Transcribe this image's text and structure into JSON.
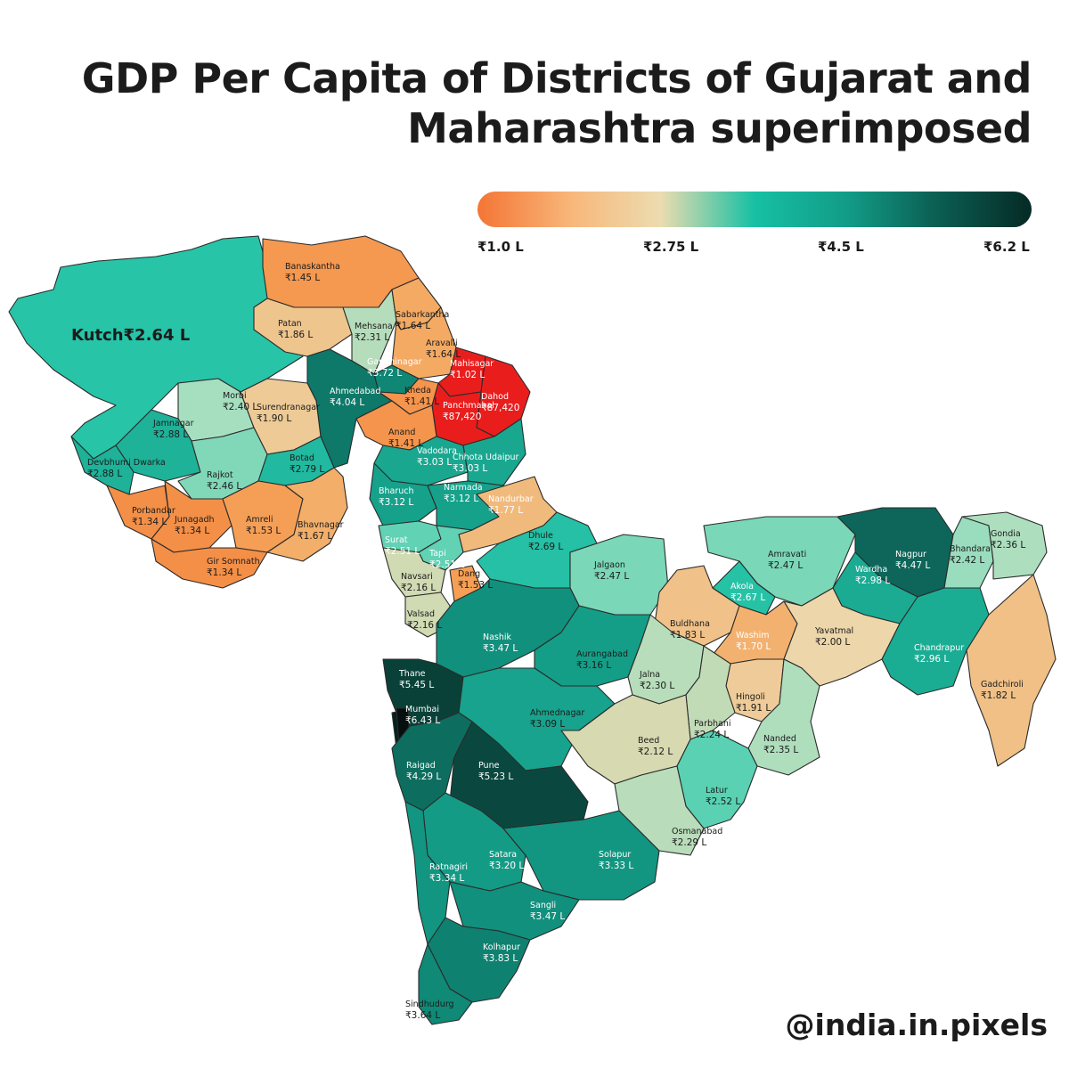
{
  "title_line1": "GDP Per Capita of Districts of Gujarat and",
  "title_line2": "Maharashtra superimposed",
  "legend": {
    "ticks": [
      "₹1.0 L",
      "₹2.75 L",
      "₹4.5 L",
      "₹6.2 L"
    ],
    "colors": [
      "#f47535",
      "#f8b77a",
      "#ecdcb0",
      "#16c0a4",
      "#129b86",
      "#0b5e52",
      "#052a25"
    ]
  },
  "credit": "@india.in.pixels",
  "districts": [
    {
      "id": "kutch",
      "name": "Kutch",
      "value": "₹2.64 L",
      "gdp": 2.64
    },
    {
      "id": "banaskantha",
      "name": "Banaskantha",
      "value": "₹1.45 L",
      "gdp": 1.45
    },
    {
      "id": "patan",
      "name": "Patan",
      "value": "₹1.86 L",
      "gdp": 1.86
    },
    {
      "id": "mehsana",
      "name": "Mehsana",
      "value": "₹2.31 L",
      "gdp": 2.31
    },
    {
      "id": "sabarkantha",
      "name": "Sabarkantha",
      "value": "₹1.64 L",
      "gdp": 1.64
    },
    {
      "id": "aravalli",
      "name": "Aravalli",
      "value": "₹1.64 L",
      "gdp": 1.64
    },
    {
      "id": "gandhinagar",
      "name": "Gandhinagar",
      "value": "₹3.72 L",
      "gdp": 3.72
    },
    {
      "id": "mahisagar",
      "name": "Mahisagar",
      "value": "₹1.02 L",
      "gdp": 1.02
    },
    {
      "id": "dahod",
      "name": "Dahod",
      "value": "₹87,420",
      "gdp": 0.874
    },
    {
      "id": "panchmahal",
      "name": "Panchmahal",
      "value": "₹87,420",
      "gdp": 0.874
    },
    {
      "id": "ahmedabad",
      "name": "Ahmedabad",
      "value": "₹4.04 L",
      "gdp": 4.04
    },
    {
      "id": "kheda",
      "name": "Kheda",
      "value": "₹1.41 L",
      "gdp": 1.41
    },
    {
      "id": "anand",
      "name": "Anand",
      "value": "₹1.41 L",
      "gdp": 1.41
    },
    {
      "id": "morbi",
      "name": "Morbi",
      "value": "₹2.40 L",
      "gdp": 2.4
    },
    {
      "id": "surendranagar",
      "name": "Surendranagar",
      "value": "₹1.90 L",
      "gdp": 1.9
    },
    {
      "id": "jamnagar",
      "name": "Jamnagar",
      "value": "₹2.88 L",
      "gdp": 2.88
    },
    {
      "id": "devbhumi-dwarka",
      "name": "Devbhumi Dwarka",
      "value": "₹2.88 L",
      "gdp": 2.88
    },
    {
      "id": "rajkot",
      "name": "Rajkot",
      "value": "₹2.46 L",
      "gdp": 2.46
    },
    {
      "id": "botad",
      "name": "Botad",
      "value": "₹2.79 L",
      "gdp": 2.79
    },
    {
      "id": "vadodara",
      "name": "Vadodara",
      "value": "₹3.03 L",
      "gdp": 3.03
    },
    {
      "id": "chhota-udaipur",
      "name": "Chhota Udaipur",
      "value": "₹3.03 L",
      "gdp": 3.03
    },
    {
      "id": "porbandar",
      "name": "Porbandar",
      "value": "₹1.34 L",
      "gdp": 1.34
    },
    {
      "id": "junagadh",
      "name": "Junagadh",
      "value": "₹1.34 L",
      "gdp": 1.34
    },
    {
      "id": "amreli",
      "name": "Amreli",
      "value": "₹1.53 L",
      "gdp": 1.53
    },
    {
      "id": "bhavnagar",
      "name": "Bhavnagar",
      "value": "₹1.67 L",
      "gdp": 1.67
    },
    {
      "id": "gir-somnath",
      "name": "Gir Somnath",
      "value": "₹1.34 L",
      "gdp": 1.34
    },
    {
      "id": "bharuch",
      "name": "Bharuch",
      "value": "₹3.12 L",
      "gdp": 3.12
    },
    {
      "id": "narmada",
      "name": "Narmada",
      "value": "₹3.12 L",
      "gdp": 3.12
    },
    {
      "id": "nandurbar",
      "name": "Nandurbar",
      "value": "₹1.77 L",
      "gdp": 1.77
    },
    {
      "id": "surat",
      "name": "Surat",
      "value": "₹2.51 L",
      "gdp": 2.51
    },
    {
      "id": "tapi",
      "name": "Tapi",
      "value": "₹2.51 L",
      "gdp": 2.51
    },
    {
      "id": "navsari",
      "name": "Navsari",
      "value": "₹2.16 L",
      "gdp": 2.16
    },
    {
      "id": "dang",
      "name": "Dang",
      "value": "₹1.53 L",
      "gdp": 1.53
    },
    {
      "id": "valsad",
      "name": "Valsad",
      "value": "₹2.16 L",
      "gdp": 2.16
    },
    {
      "id": "dhule",
      "name": "Dhule",
      "value": "₹2.69 L",
      "gdp": 2.69
    },
    {
      "id": "jalgaon",
      "name": "Jalgaon",
      "value": "₹2.47 L",
      "gdp": 2.47
    },
    {
      "id": "amravati",
      "name": "Amravati",
      "value": "₹2.47 L",
      "gdp": 2.47
    },
    {
      "id": "nagpur",
      "name": "Nagpur",
      "value": "₹4.47 L",
      "gdp": 4.47
    },
    {
      "id": "bhandara",
      "name": "Bhandara",
      "value": "₹2.42 L",
      "gdp": 2.42
    },
    {
      "id": "gondia",
      "name": "Gondia",
      "value": "₹2.36 L",
      "gdp": 2.36
    },
    {
      "id": "buldhana",
      "name": "Buldhana",
      "value": "₹1.83 L",
      "gdp": 1.83
    },
    {
      "id": "akola",
      "name": "Akola",
      "value": "₹2.67 L",
      "gdp": 2.67
    },
    {
      "id": "wardha",
      "name": "Wardha",
      "value": "₹2.98 L",
      "gdp": 2.98
    },
    {
      "id": "washim",
      "name": "Washim",
      "value": "₹1.70 L",
      "gdp": 1.7
    },
    {
      "id": "yavatmal",
      "name": "Yavatmal",
      "value": "₹2.00 L",
      "gdp": 2.0
    },
    {
      "id": "chandrapur",
      "name": "Chandrapur",
      "value": "₹2.96 L",
      "gdp": 2.96
    },
    {
      "id": "gadchiroli",
      "name": "Gadchiroli",
      "value": "₹1.82 L",
      "gdp": 1.82
    },
    {
      "id": "nashik",
      "name": "Nashik",
      "value": "₹3.47 L",
      "gdp": 3.47
    },
    {
      "id": "aurangabad",
      "name": "Aurangabad",
      "value": "₹3.16 L",
      "gdp": 3.16
    },
    {
      "id": "jalna",
      "name": "Jalna",
      "value": "₹2.30 L",
      "gdp": 2.3
    },
    {
      "id": "hingoli",
      "name": "Hingoli",
      "value": "₹1.91 L",
      "gdp": 1.91
    },
    {
      "id": "parbhani",
      "name": "Parbhani",
      "value": "₹2.24 L",
      "gdp": 2.24
    },
    {
      "id": "nanded",
      "name": "Nanded",
      "value": "₹2.35 L",
      "gdp": 2.35
    },
    {
      "id": "thane",
      "name": "Thane",
      "value": "₹5.45 L",
      "gdp": 5.45
    },
    {
      "id": "mumbai",
      "name": "Mumbai",
      "value": "₹6.43 L",
      "gdp": 6.43
    },
    {
      "id": "ahmednagar",
      "name": "Ahmednagar",
      "value": "₹3.09 L",
      "gdp": 3.09
    },
    {
      "id": "beed",
      "name": "Beed",
      "value": "₹2.12 L",
      "gdp": 2.12
    },
    {
      "id": "latur",
      "name": "Latur",
      "value": "₹2.52 L",
      "gdp": 2.52
    },
    {
      "id": "raigad",
      "name": "Raigad",
      "value": "₹4.29 L",
      "gdp": 4.29
    },
    {
      "id": "pune",
      "name": "Pune",
      "value": "₹5.23 L",
      "gdp": 5.23
    },
    {
      "id": "osmanabad",
      "name": "Osmanabad",
      "value": "₹2.29 L",
      "gdp": 2.29
    },
    {
      "id": "satara",
      "name": "Satara",
      "value": "₹3.20 L",
      "gdp": 3.2
    },
    {
      "id": "solapur",
      "name": "Solapur",
      "value": "₹3.33 L",
      "gdp": 3.33
    },
    {
      "id": "ratnagiri",
      "name": "Ratnagiri",
      "value": "₹3.34 L",
      "gdp": 3.34
    },
    {
      "id": "sangli",
      "name": "Sangli",
      "value": "₹3.47 L",
      "gdp": 3.47
    },
    {
      "id": "kolhapur",
      "name": "Kolhapur",
      "value": "₹3.83 L",
      "gdp": 3.83
    },
    {
      "id": "sindhudurg",
      "name": "Sindhudurg",
      "value": "₹3.64 L",
      "gdp": 3.64
    }
  ]
}
